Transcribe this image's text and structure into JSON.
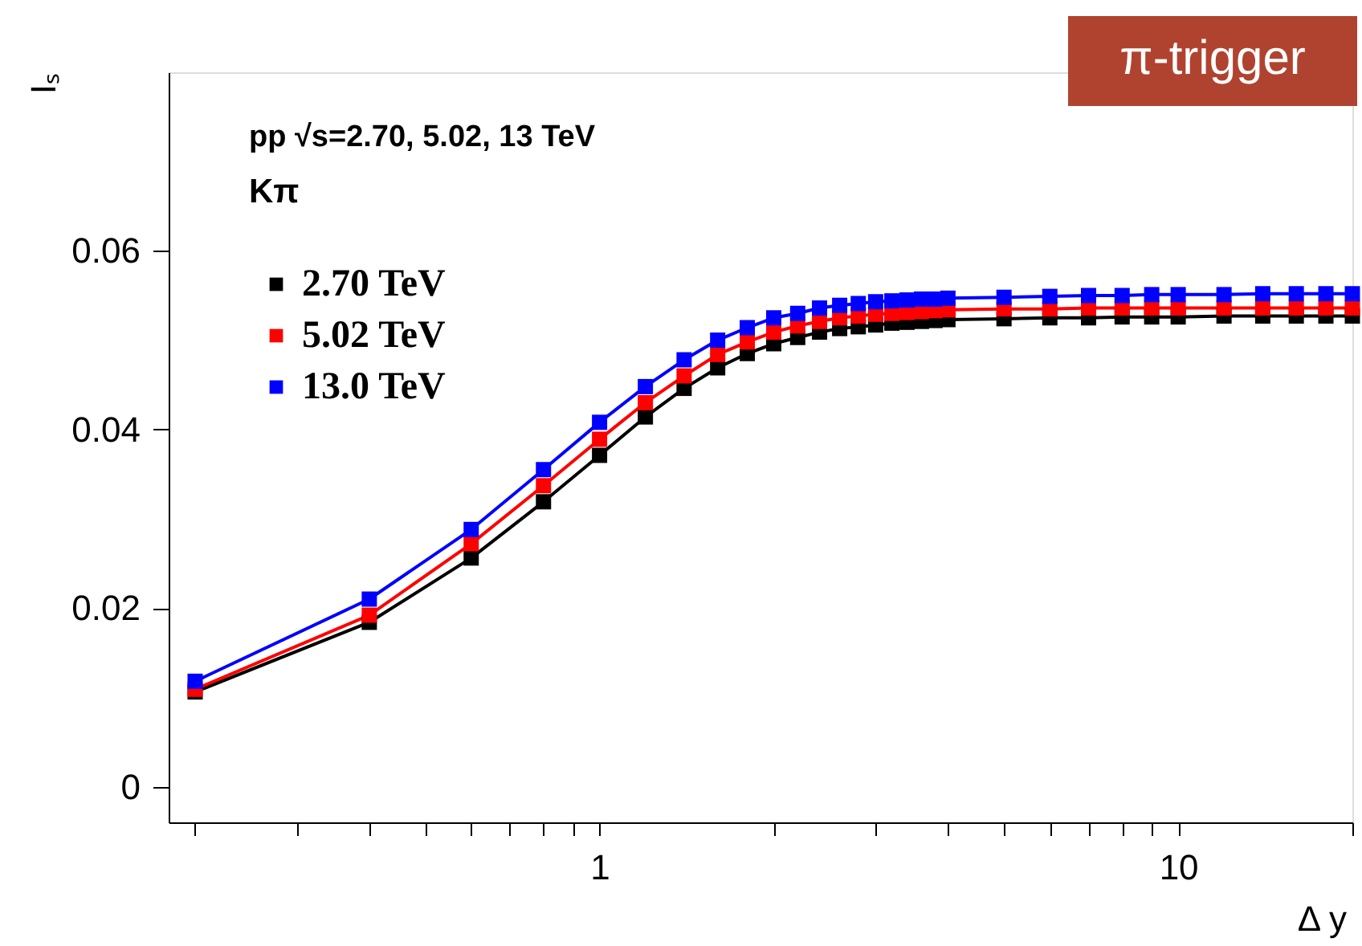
{
  "chart_data": {
    "type": "line",
    "xlabel": "Δ y",
    "ylabel": "Iₛ",
    "log": "x",
    "marker": "square",
    "line_style": "solid",
    "grid": false,
    "legend": "top left",
    "xlim": [
      0.18,
      20
    ],
    "ylim": [
      -0.004,
      0.08
    ],
    "xticks": [
      {
        "value": 0.2,
        "label": null
      },
      {
        "value": 0.3,
        "label": null
      },
      {
        "value": 0.4,
        "label": null
      },
      {
        "value": 0.5,
        "label": null
      },
      {
        "value": 0.6,
        "label": null
      },
      {
        "value": 0.7,
        "label": null
      },
      {
        "value": 0.8,
        "label": null
      },
      {
        "value": 0.9,
        "label": null
      },
      1,
      {
        "value": 2,
        "label": null
      },
      {
        "value": 3,
        "label": null
      },
      {
        "value": 4,
        "label": null
      },
      {
        "value": 5,
        "label": null
      },
      {
        "value": 6,
        "label": null
      },
      {
        "value": 7,
        "label": null
      },
      {
        "value": 8,
        "label": null
      },
      {
        "value": 9,
        "label": null
      },
      10,
      {
        "value": 20,
        "label": null
      }
    ],
    "yticks": [
      0,
      0.02,
      0.04,
      0.06
    ],
    "x": [
      0.2,
      0.4,
      0.6,
      0.8,
      1.0,
      1.2,
      1.4,
      1.6,
      1.8,
      2.0,
      2.2,
      2.4,
      2.6,
      2.8,
      3.0,
      3.2,
      3.4,
      3.6,
      3.8,
      4.0,
      5,
      6,
      7,
      8,
      9,
      10,
      12,
      14,
      16,
      18,
      20
    ],
    "series": [
      {
        "name": "2.70 TeV",
        "color": "#000000",
        "values": [
          0.0106,
          0.0184,
          0.0256,
          0.0319,
          0.0371,
          0.0414,
          0.0446,
          0.0469,
          0.0485,
          0.0496,
          0.0503,
          0.0509,
          0.0513,
          0.0515,
          0.0517,
          0.0519,
          0.052,
          0.0521,
          0.0522,
          0.0523,
          0.0524,
          0.0525,
          0.0525,
          0.0526,
          0.0526,
          0.0526,
          0.0527,
          0.0527,
          0.0527,
          0.0527,
          0.0527
        ]
      },
      {
        "name": "5.02 TeV",
        "color": "#ff0000",
        "values": [
          0.0109,
          0.0192,
          0.0272,
          0.0337,
          0.0389,
          0.043,
          0.046,
          0.0484,
          0.0498,
          0.0509,
          0.0516,
          0.0521,
          0.0525,
          0.0527,
          0.0529,
          0.053,
          0.0531,
          0.0532,
          0.0533,
          0.0534,
          0.0535,
          0.0535,
          0.0536,
          0.0536,
          0.0536,
          0.0536,
          0.0536,
          0.0536,
          0.0536,
          0.0536,
          0.0536
        ]
      },
      {
        "name": "13.0 TeV",
        "color": "#0000ff",
        "values": [
          0.0118,
          0.021,
          0.0288,
          0.0355,
          0.0408,
          0.0448,
          0.0478,
          0.05,
          0.0514,
          0.0525,
          0.053,
          0.0536,
          0.0539,
          0.0541,
          0.0543,
          0.0544,
          0.0545,
          0.0546,
          0.0546,
          0.0547,
          0.0548,
          0.0549,
          0.055,
          0.055,
          0.0551,
          0.0551,
          0.0551,
          0.0552,
          0.0552,
          0.0552,
          0.0552
        ]
      }
    ],
    "annotations": [
      "pp  √s=2.70, 5.02, 13 TeV",
      "Kπ",
      "π-trigger"
    ]
  }
}
